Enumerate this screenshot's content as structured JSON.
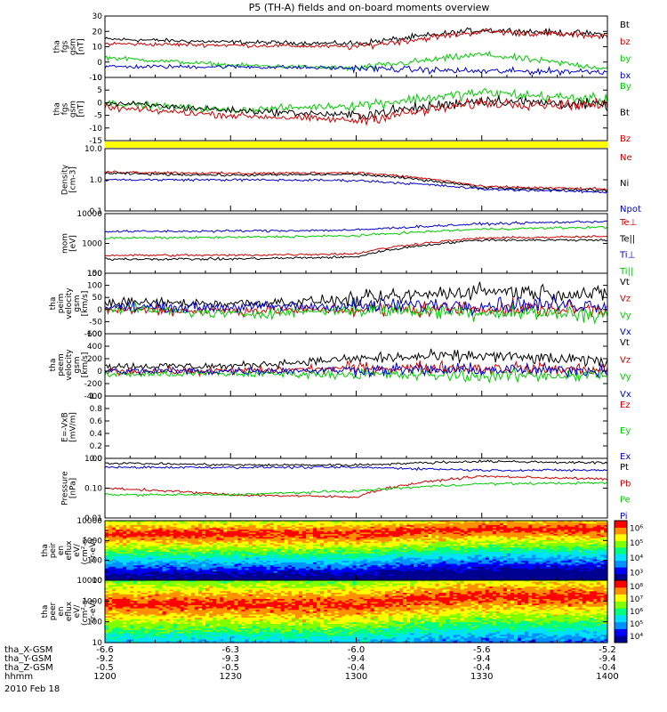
{
  "title": "P5 (TH-A) fields and on-board moments overview",
  "date": "2010 Feb 18",
  "panels": [
    {
      "id": "fgs_gsm",
      "ylabel": [
        "tha",
        "fgs",
        "gsm",
        "[nT]"
      ],
      "yscale": "linear",
      "ylim": [
        -10,
        30
      ],
      "yticks": [
        "30",
        "20",
        "10",
        "0",
        "-10"
      ],
      "legend": [
        {
          "text": "Bt",
          "color": "#000000"
        },
        {
          "text": "bz",
          "color": "#cc0000"
        },
        {
          "text": "by",
          "color": "#00cc00"
        },
        {
          "text": "bx",
          "color": "#0000cc"
        }
      ]
    },
    {
      "id": "fgs_gse",
      "ylabel": [
        "tha",
        "fgs",
        "gsm",
        "[nT]"
      ],
      "yscale": "linear",
      "ylim": [
        -15,
        10
      ],
      "yticks": [
        "10",
        "5",
        "0",
        "-5",
        "-10",
        "-15"
      ],
      "legend": [
        {
          "text": "By",
          "color": "#00cc00"
        },
        {
          "text": "Bt",
          "color": "#000000"
        },
        {
          "text": "Bz",
          "color": "#cc0000"
        }
      ]
    },
    {
      "id": "density",
      "ylabel": [
        "Density",
        "[cm-3]"
      ],
      "yscale": "log",
      "ylim": [
        0.1,
        10
      ],
      "yticks": [
        "10.0",
        "1.0",
        "0.1"
      ],
      "legend": [
        {
          "text": "Ne",
          "color": "#cc0000"
        },
        {
          "text": "Ni",
          "color": "#000000"
        },
        {
          "text": "Npot",
          "color": "#0000cc"
        }
      ]
    },
    {
      "id": "temp",
      "ylabel": [
        "mom",
        "[eV]"
      ],
      "yscale": "log",
      "ylim": [
        100,
        10000
      ],
      "yticks": [
        "10000",
        "1000",
        "100"
      ],
      "legend": [
        {
          "text": "Te⊥",
          "color": "#cc0000"
        },
        {
          "text": "Te||",
          "color": "#000000"
        },
        {
          "text": "Ti⊥",
          "color": "#0000cc"
        },
        {
          "text": "Ti||",
          "color": "#00cc00"
        }
      ]
    },
    {
      "id": "peim_vel",
      "ylabel": [
        "tha",
        "peim",
        "velocity",
        "gsm",
        "[km/s]"
      ],
      "yscale": "linear",
      "ylim": [
        -100,
        150
      ],
      "yticks": [
        "150",
        "100",
        "50",
        "0",
        "-50",
        "-100"
      ],
      "legend": [
        {
          "text": "Vt",
          "color": "#000000"
        },
        {
          "text": "Vz",
          "color": "#cc0000"
        },
        {
          "text": "Vy",
          "color": "#00cc00"
        },
        {
          "text": "Vx",
          "color": "#0000cc"
        }
      ]
    },
    {
      "id": "peem_vel",
      "ylabel": [
        "tha",
        "peem",
        "velocity",
        "gsm",
        "[km/s]"
      ],
      "yscale": "linear",
      "ylim": [
        -400,
        600
      ],
      "yticks": [
        "600",
        "400",
        "200",
        "0",
        "-200",
        "-400"
      ],
      "legend": [
        {
          "text": "Vt",
          "color": "#000000"
        },
        {
          "text": "Vz",
          "color": "#cc0000"
        },
        {
          "text": "Vy",
          "color": "#00cc00"
        },
        {
          "text": "Vx",
          "color": "#0000cc"
        }
      ]
    },
    {
      "id": "efield",
      "ylabel": [
        "E=-VxB",
        "[mV/m]"
      ],
      "yscale": "linear",
      "ylim": [
        0,
        1
      ],
      "yticks": [
        "1.0",
        "0.8",
        "0.6",
        "0.4",
        "0.2",
        "0.0"
      ],
      "legend": [
        {
          "text": "Ez",
          "color": "#cc0000"
        },
        {
          "text": "Ey",
          "color": "#00cc00"
        },
        {
          "text": "Ex",
          "color": "#0000cc"
        }
      ]
    },
    {
      "id": "pressure",
      "ylabel": [
        "Pressure",
        "[nPa]"
      ],
      "yscale": "log",
      "ylim": [
        0.01,
        1
      ],
      "yticks": [
        "1.00",
        "0.10",
        "0.01"
      ],
      "legend": [
        {
          "text": "Pt",
          "color": "#000000"
        },
        {
          "text": "Pb",
          "color": "#cc0000"
        },
        {
          "text": "Pe",
          "color": "#00cc00"
        },
        {
          "text": "Pi",
          "color": "#0000cc"
        }
      ]
    },
    {
      "id": "peir_spec",
      "ylabel": [
        "tha",
        "peir",
        "en",
        "eflux",
        "eV/",
        "(cm²-s-",
        "sr-eV)"
      ],
      "yscale": "log",
      "ylim": [
        5,
        20000
      ],
      "yticks": [
        "10000",
        "1000",
        "100",
        "10"
      ],
      "colorbar": [
        "10⁶",
        "10⁵",
        "10⁴",
        "10³"
      ]
    },
    {
      "id": "peer_spec",
      "ylabel": [
        "tha",
        "peer",
        "en",
        "eflux",
        "eV/",
        "(cm²-s-",
        "sr-eV)"
      ],
      "yscale": "log",
      "ylim": [
        7,
        15000
      ],
      "yticks": [
        "10000",
        "1000",
        "100",
        "10"
      ],
      "colorbar": [
        "10⁸",
        "10⁷",
        "10⁶",
        "10⁵",
        "10⁴"
      ]
    }
  ],
  "xaxis": {
    "row_labels": [
      "tha_X-GSM",
      "tha_Y-GSM",
      "tha_Z-GSM",
      "hhmm"
    ],
    "columns": [
      {
        "x": "-6.6",
        "y": "-9.2",
        "z": "-0.5",
        "t": "1200"
      },
      {
        "x": "-6.3",
        "y": "-9.3",
        "z": "-0.5",
        "t": "1230"
      },
      {
        "x": "-6.0",
        "y": "-9.4",
        "z": "-0.4",
        "t": "1300"
      },
      {
        "x": "-5.6",
        "y": "-9.4",
        "z": "-0.4",
        "t": "1330"
      },
      {
        "x": "-5.2",
        "y": "-9.4",
        "z": "-0.4",
        "t": "1400"
      }
    ]
  },
  "chart_data": {
    "type": "line",
    "x": [
      "1200",
      "1230",
      "1300",
      "1330",
      "1400"
    ],
    "series": [
      {
        "panel": "fgs_gsm",
        "name": "Bt",
        "color": "#000000",
        "values": [
          15,
          13,
          12,
          21,
          18
        ]
      },
      {
        "panel": "fgs_gsm",
        "name": "bz",
        "color": "#cc0000",
        "values": [
          12,
          11,
          10,
          20,
          17
        ]
      },
      {
        "panel": "fgs_gsm",
        "name": "by",
        "color": "#00cc00",
        "values": [
          3,
          -2,
          -4,
          5,
          -4
        ]
      },
      {
        "panel": "fgs_gsm",
        "name": "bx",
        "color": "#0000cc",
        "values": [
          -3,
          -3,
          -4,
          -6,
          -6
        ]
      },
      {
        "panel": "fgs_gse",
        "name": "By",
        "color": "#00cc00",
        "values": [
          0,
          -3,
          -1,
          4,
          1
        ]
      },
      {
        "panel": "fgs_gse",
        "name": "Bt",
        "color": "#000000",
        "values": [
          0,
          -3,
          -5,
          1,
          -1
        ]
      },
      {
        "panel": "fgs_gse",
        "name": "Bz",
        "color": "#cc0000",
        "values": [
          -2,
          -5,
          -7,
          0,
          -1
        ]
      },
      {
        "panel": "density",
        "name": "Ne",
        "color": "#cc0000",
        "values": [
          1.8,
          1.6,
          1.7,
          0.6,
          0.5
        ]
      },
      {
        "panel": "density",
        "name": "Ni",
        "color": "#000000",
        "values": [
          1.6,
          1.4,
          1.5,
          0.55,
          0.45
        ]
      },
      {
        "panel": "density",
        "name": "Npot",
        "color": "#0000cc",
        "values": [
          1.0,
          1.0,
          0.95,
          0.5,
          0.4
        ]
      },
      {
        "panel": "temp",
        "name": "Te⊥",
        "color": "#cc0000",
        "values": [
          400,
          400,
          450,
          1500,
          1700
        ]
      },
      {
        "panel": "temp",
        "name": "Te||",
        "color": "#000000",
        "values": [
          300,
          300,
          350,
          1300,
          1300
        ]
      },
      {
        "panel": "temp",
        "name": "Ti⊥",
        "color": "#0000cc",
        "values": [
          2500,
          2600,
          2800,
          4500,
          5500
        ]
      },
      {
        "panel": "temp",
        "name": "Ti||",
        "color": "#00cc00",
        "values": [
          1500,
          1600,
          1800,
          3000,
          3500
        ]
      },
      {
        "panel": "peim_vel",
        "name": "Vt",
        "color": "#000000",
        "values": [
          30,
          25,
          40,
          80,
          60
        ]
      },
      {
        "panel": "peim_vel",
        "name": "Vz",
        "color": "#cc0000",
        "values": [
          0,
          -5,
          0,
          5,
          0
        ]
      },
      {
        "panel": "peim_vel",
        "name": "Vy",
        "color": "#00cc00",
        "values": [
          10,
          -20,
          0,
          -10,
          -20
        ]
      },
      {
        "panel": "peim_vel",
        "name": "Vx",
        "color": "#0000cc",
        "values": [
          10,
          10,
          15,
          20,
          20
        ]
      },
      {
        "panel": "peem_vel",
        "name": "Vt",
        "color": "#000000",
        "values": [
          80,
          80,
          200,
          250,
          150
        ]
      },
      {
        "panel": "peem_vel",
        "name": "Vz",
        "color": "#cc0000",
        "values": [
          0,
          0,
          50,
          50,
          20
        ]
      },
      {
        "panel": "peem_vel",
        "name": "Vy",
        "color": "#00cc00",
        "values": [
          -50,
          -40,
          -50,
          -80,
          -60
        ]
      },
      {
        "panel": "peem_vel",
        "name": "Vx",
        "color": "#0000cc",
        "values": [
          0,
          0,
          20,
          20,
          10
        ]
      },
      {
        "panel": "pressure",
        "name": "Pt",
        "color": "#000000",
        "values": [
          0.7,
          0.6,
          0.6,
          0.8,
          0.7
        ]
      },
      {
        "panel": "pressure",
        "name": "Pb",
        "color": "#cc0000",
        "values": [
          0.1,
          0.06,
          0.05,
          0.25,
          0.2
        ]
      },
      {
        "panel": "pressure",
        "name": "Pe",
        "color": "#00cc00",
        "values": [
          0.06,
          0.06,
          0.08,
          0.14,
          0.15
        ]
      },
      {
        "panel": "pressure",
        "name": "Pi",
        "color": "#0000cc",
        "values": [
          0.5,
          0.5,
          0.5,
          0.4,
          0.4
        ]
      }
    ],
    "spectrograms": [
      {
        "panel": "peir_spec",
        "peak_energy_eV": [
          3000,
          3000,
          3000,
          6000,
          6000
        ],
        "ylim": [
          5,
          20000
        ]
      },
      {
        "panel": "peer_spec",
        "peak_energy_eV": [
          800,
          800,
          700,
          2000,
          2000
        ],
        "ylim": [
          7,
          15000
        ]
      }
    ],
    "title": "P5 (TH-A) fields and on-board moments overview",
    "xlabel": "hhmm"
  }
}
